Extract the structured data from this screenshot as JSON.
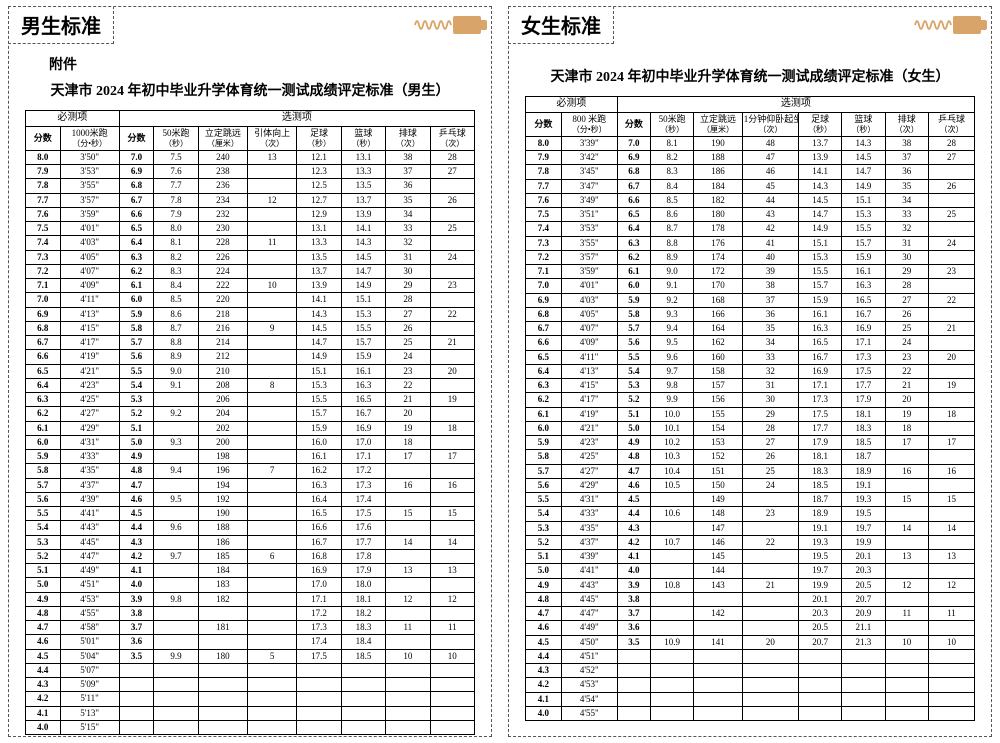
{
  "left": {
    "tab": "男生标准",
    "appendix": "附件",
    "title": "天津市 2024 年初中毕业升学体育统一测试成绩评定标准（男生）",
    "group_required": "必测项",
    "group_optional": "选测项",
    "cols": [
      {
        "h": "分数",
        "u": ""
      },
      {
        "h": "1000米跑",
        "u": "（分•秒）"
      },
      {
        "h": "分数",
        "u": ""
      },
      {
        "h": "50米跑",
        "u": "（秒）"
      },
      {
        "h": "立定跳远",
        "u": "（厘米）"
      },
      {
        "h": "引体向上",
        "u": "（次）"
      },
      {
        "h": "足球",
        "u": "（秒）"
      },
      {
        "h": "篮球",
        "u": "（秒）"
      },
      {
        "h": "排球",
        "u": "（次）"
      },
      {
        "h": "乒乓球",
        "u": "（次）"
      }
    ],
    "rows": [
      [
        "8.0",
        "3'50\"",
        "7.0",
        "7.5",
        "240",
        "13",
        "12.1",
        "13.1",
        "38",
        "28"
      ],
      [
        "7.9",
        "3'53\"",
        "6.9",
        "7.6",
        "238",
        "",
        "12.3",
        "13.3",
        "37",
        "27"
      ],
      [
        "7.8",
        "3'55\"",
        "6.8",
        "7.7",
        "236",
        "",
        "12.5",
        "13.5",
        "36",
        ""
      ],
      [
        "7.7",
        "3'57\"",
        "6.7",
        "7.8",
        "234",
        "12",
        "12.7",
        "13.7",
        "35",
        "26"
      ],
      [
        "7.6",
        "3'59\"",
        "6.6",
        "7.9",
        "232",
        "",
        "12.9",
        "13.9",
        "34",
        ""
      ],
      [
        "7.5",
        "4'01\"",
        "6.5",
        "8.0",
        "230",
        "",
        "13.1",
        "14.1",
        "33",
        "25"
      ],
      [
        "7.4",
        "4'03\"",
        "6.4",
        "8.1",
        "228",
        "11",
        "13.3",
        "14.3",
        "32",
        ""
      ],
      [
        "7.3",
        "4'05\"",
        "6.3",
        "8.2",
        "226",
        "",
        "13.5",
        "14.5",
        "31",
        "24"
      ],
      [
        "7.2",
        "4'07\"",
        "6.2",
        "8.3",
        "224",
        "",
        "13.7",
        "14.7",
        "30",
        ""
      ],
      [
        "7.1",
        "4'09\"",
        "6.1",
        "8.4",
        "222",
        "10",
        "13.9",
        "14.9",
        "29",
        "23"
      ],
      [
        "7.0",
        "4'11\"",
        "6.0",
        "8.5",
        "220",
        "",
        "14.1",
        "15.1",
        "28",
        ""
      ],
      [
        "6.9",
        "4'13\"",
        "5.9",
        "8.6",
        "218",
        "",
        "14.3",
        "15.3",
        "27",
        "22"
      ],
      [
        "6.8",
        "4'15\"",
        "5.8",
        "8.7",
        "216",
        "9",
        "14.5",
        "15.5",
        "26",
        ""
      ],
      [
        "6.7",
        "4'17\"",
        "5.7",
        "8.8",
        "214",
        "",
        "14.7",
        "15.7",
        "25",
        "21"
      ],
      [
        "6.6",
        "4'19\"",
        "5.6",
        "8.9",
        "212",
        "",
        "14.9",
        "15.9",
        "24",
        ""
      ],
      [
        "6.5",
        "4'21\"",
        "5.5",
        "9.0",
        "210",
        "",
        "15.1",
        "16.1",
        "23",
        "20"
      ],
      [
        "6.4",
        "4'23\"",
        "5.4",
        "9.1",
        "208",
        "8",
        "15.3",
        "16.3",
        "22",
        ""
      ],
      [
        "6.3",
        "4'25\"",
        "5.3",
        "",
        "206",
        "",
        "15.5",
        "16.5",
        "21",
        "19"
      ],
      [
        "6.2",
        "4'27\"",
        "5.2",
        "9.2",
        "204",
        "",
        "15.7",
        "16.7",
        "20",
        ""
      ],
      [
        "6.1",
        "4'29\"",
        "5.1",
        "",
        "202",
        "",
        "15.9",
        "16.9",
        "19",
        "18"
      ],
      [
        "6.0",
        "4'31\"",
        "5.0",
        "9.3",
        "200",
        "",
        "16.0",
        "17.0",
        "18",
        ""
      ],
      [
        "5.9",
        "4'33\"",
        "4.9",
        "",
        "198",
        "",
        "16.1",
        "17.1",
        "17",
        "17"
      ],
      [
        "5.8",
        "4'35\"",
        "4.8",
        "9.4",
        "196",
        "7",
        "16.2",
        "17.2",
        "",
        ""
      ],
      [
        "5.7",
        "4'37\"",
        "4.7",
        "",
        "194",
        "",
        "16.3",
        "17.3",
        "16",
        "16"
      ],
      [
        "5.6",
        "4'39\"",
        "4.6",
        "9.5",
        "192",
        "",
        "16.4",
        "17.4",
        "",
        ""
      ],
      [
        "5.5",
        "4'41\"",
        "4.5",
        "",
        "190",
        "",
        "16.5",
        "17.5",
        "15",
        "15"
      ],
      [
        "5.4",
        "4'43\"",
        "4.4",
        "9.6",
        "188",
        "",
        "16.6",
        "17.6",
        "",
        ""
      ],
      [
        "5.3",
        "4'45\"",
        "4.3",
        "",
        "186",
        "",
        "16.7",
        "17.7",
        "14",
        "14"
      ],
      [
        "5.2",
        "4'47\"",
        "4.2",
        "9.7",
        "185",
        "6",
        "16.8",
        "17.8",
        "",
        ""
      ],
      [
        "5.1",
        "4'49\"",
        "4.1",
        "",
        "184",
        "",
        "16.9",
        "17.9",
        "13",
        "13"
      ],
      [
        "5.0",
        "4'51\"",
        "4.0",
        "",
        "183",
        "",
        "17.0",
        "18.0",
        "",
        ""
      ],
      [
        "4.9",
        "4'53\"",
        "3.9",
        "9.8",
        "182",
        "",
        "17.1",
        "18.1",
        "12",
        "12"
      ],
      [
        "4.8",
        "4'55\"",
        "3.8",
        "",
        "",
        "",
        "17.2",
        "18.2",
        "",
        ""
      ],
      [
        "4.7",
        "4'58\"",
        "3.7",
        "",
        "181",
        "",
        "17.3",
        "18.3",
        "11",
        "11"
      ],
      [
        "4.6",
        "5'01\"",
        "3.6",
        "",
        "",
        "",
        "17.4",
        "18.4",
        "",
        ""
      ],
      [
        "4.5",
        "5'04\"",
        "3.5",
        "9.9",
        "180",
        "5",
        "17.5",
        "18.5",
        "10",
        "10"
      ],
      [
        "4.4",
        "5'07\"",
        "",
        "",
        "",
        "",
        "",
        "",
        "",
        ""
      ],
      [
        "4.3",
        "5'09\"",
        "",
        "",
        "",
        "",
        "",
        "",
        "",
        ""
      ],
      [
        "4.2",
        "5'11\"",
        "",
        "",
        "",
        "",
        "",
        "",
        "",
        ""
      ],
      [
        "4.1",
        "5'13\"",
        "",
        "",
        "",
        "",
        "",
        "",
        "",
        ""
      ],
      [
        "4.0",
        "5'15\"",
        "",
        "",
        "",
        "",
        "",
        "",
        "",
        ""
      ]
    ]
  },
  "right": {
    "tab": "女生标准",
    "title": "天津市 2024 年初中毕业升学体育统一测试成绩评定标准（女生）",
    "group_required": "必测项",
    "group_optional": "选测项",
    "cols": [
      {
        "h": "分数",
        "u": ""
      },
      {
        "h": "800 米跑",
        "u": "（分•秒）"
      },
      {
        "h": "分数",
        "u": ""
      },
      {
        "h": "50米跑",
        "u": "（秒）"
      },
      {
        "h": "立定跳远",
        "u": "（厘米）"
      },
      {
        "h": "1分钟仰卧起坐",
        "u": "（次）"
      },
      {
        "h": "足球",
        "u": "（秒）"
      },
      {
        "h": "篮球",
        "u": "（秒）"
      },
      {
        "h": "排球",
        "u": "（次）"
      },
      {
        "h": "乒乓球",
        "u": "（次）"
      }
    ],
    "rows": [
      [
        "8.0",
        "3'39\"",
        "7.0",
        "8.1",
        "190",
        "48",
        "13.7",
        "14.3",
        "38",
        "28"
      ],
      [
        "7.9",
        "3'42\"",
        "6.9",
        "8.2",
        "188",
        "47",
        "13.9",
        "14.5",
        "37",
        "27"
      ],
      [
        "7.8",
        "3'45\"",
        "6.8",
        "8.3",
        "186",
        "46",
        "14.1",
        "14.7",
        "36",
        ""
      ],
      [
        "7.7",
        "3'47\"",
        "6.7",
        "8.4",
        "184",
        "45",
        "14.3",
        "14.9",
        "35",
        "26"
      ],
      [
        "7.6",
        "3'49\"",
        "6.6",
        "8.5",
        "182",
        "44",
        "14.5",
        "15.1",
        "34",
        ""
      ],
      [
        "7.5",
        "3'51\"",
        "6.5",
        "8.6",
        "180",
        "43",
        "14.7",
        "15.3",
        "33",
        "25"
      ],
      [
        "7.4",
        "3'53\"",
        "6.4",
        "8.7",
        "178",
        "42",
        "14.9",
        "15.5",
        "32",
        ""
      ],
      [
        "7.3",
        "3'55\"",
        "6.3",
        "8.8",
        "176",
        "41",
        "15.1",
        "15.7",
        "31",
        "24"
      ],
      [
        "7.2",
        "3'57\"",
        "6.2",
        "8.9",
        "174",
        "40",
        "15.3",
        "15.9",
        "30",
        ""
      ],
      [
        "7.1",
        "3'59\"",
        "6.1",
        "9.0",
        "172",
        "39",
        "15.5",
        "16.1",
        "29",
        "23"
      ],
      [
        "7.0",
        "4'01\"",
        "6.0",
        "9.1",
        "170",
        "38",
        "15.7",
        "16.3",
        "28",
        ""
      ],
      [
        "6.9",
        "4'03\"",
        "5.9",
        "9.2",
        "168",
        "37",
        "15.9",
        "16.5",
        "27",
        "22"
      ],
      [
        "6.8",
        "4'05\"",
        "5.8",
        "9.3",
        "166",
        "36",
        "16.1",
        "16.7",
        "26",
        ""
      ],
      [
        "6.7",
        "4'07\"",
        "5.7",
        "9.4",
        "164",
        "35",
        "16.3",
        "16.9",
        "25",
        "21"
      ],
      [
        "6.6",
        "4'09\"",
        "5.6",
        "9.5",
        "162",
        "34",
        "16.5",
        "17.1",
        "24",
        ""
      ],
      [
        "6.5",
        "4'11\"",
        "5.5",
        "9.6",
        "160",
        "33",
        "16.7",
        "17.3",
        "23",
        "20"
      ],
      [
        "6.4",
        "4'13\"",
        "5.4",
        "9.7",
        "158",
        "32",
        "16.9",
        "17.5",
        "22",
        ""
      ],
      [
        "6.3",
        "4'15\"",
        "5.3",
        "9.8",
        "157",
        "31",
        "17.1",
        "17.7",
        "21",
        "19"
      ],
      [
        "6.2",
        "4'17\"",
        "5.2",
        "9.9",
        "156",
        "30",
        "17.3",
        "17.9",
        "20",
        ""
      ],
      [
        "6.1",
        "4'19\"",
        "5.1",
        "10.0",
        "155",
        "29",
        "17.5",
        "18.1",
        "19",
        "18"
      ],
      [
        "6.0",
        "4'21\"",
        "5.0",
        "10.1",
        "154",
        "28",
        "17.7",
        "18.3",
        "18",
        ""
      ],
      [
        "5.9",
        "4'23\"",
        "4.9",
        "10.2",
        "153",
        "27",
        "17.9",
        "18.5",
        "17",
        "17"
      ],
      [
        "5.8",
        "4'25\"",
        "4.8",
        "10.3",
        "152",
        "26",
        "18.1",
        "18.7",
        "",
        ""
      ],
      [
        "5.7",
        "4'27\"",
        "4.7",
        "10.4",
        "151",
        "25",
        "18.3",
        "18.9",
        "16",
        "16"
      ],
      [
        "5.6",
        "4'29\"",
        "4.6",
        "10.5",
        "150",
        "24",
        "18.5",
        "19.1",
        "",
        ""
      ],
      [
        "5.5",
        "4'31\"",
        "4.5",
        "",
        "149",
        "",
        "18.7",
        "19.3",
        "15",
        "15"
      ],
      [
        "5.4",
        "4'33\"",
        "4.4",
        "10.6",
        "148",
        "23",
        "18.9",
        "19.5",
        "",
        ""
      ],
      [
        "5.3",
        "4'35\"",
        "4.3",
        "",
        "147",
        "",
        "19.1",
        "19.7",
        "14",
        "14"
      ],
      [
        "5.2",
        "4'37\"",
        "4.2",
        "10.7",
        "146",
        "22",
        "19.3",
        "19.9",
        "",
        ""
      ],
      [
        "5.1",
        "4'39\"",
        "4.1",
        "",
        "145",
        "",
        "19.5",
        "20.1",
        "13",
        "13"
      ],
      [
        "5.0",
        "4'41\"",
        "4.0",
        "",
        "144",
        "",
        "19.7",
        "20.3",
        "",
        ""
      ],
      [
        "4.9",
        "4'43\"",
        "3.9",
        "10.8",
        "143",
        "21",
        "19.9",
        "20.5",
        "12",
        "12"
      ],
      [
        "4.8",
        "4'45\"",
        "3.8",
        "",
        "",
        "",
        "20.1",
        "20.7",
        "",
        ""
      ],
      [
        "4.7",
        "4'47\"",
        "3.7",
        "",
        "142",
        "",
        "20.3",
        "20.9",
        "11",
        "11"
      ],
      [
        "4.6",
        "4'49\"",
        "3.6",
        "",
        "",
        "",
        "20.5",
        "21.1",
        "",
        ""
      ],
      [
        "4.5",
        "4'50\"",
        "3.5",
        "10.9",
        "141",
        "20",
        "20.7",
        "21.3",
        "10",
        "10"
      ],
      [
        "4.4",
        "4'51\"",
        "",
        "",
        "",
        "",
        "",
        "",
        "",
        ""
      ],
      [
        "4.3",
        "4'52\"",
        "",
        "",
        "",
        "",
        "",
        "",
        "",
        ""
      ],
      [
        "4.2",
        "4'53\"",
        "",
        "",
        "",
        "",
        "",
        "",
        "",
        ""
      ],
      [
        "4.1",
        "4'54\"",
        "",
        "",
        "",
        "",
        "",
        "",
        "",
        ""
      ],
      [
        "4.0",
        "4'55\"",
        "",
        "",
        "",
        "",
        "",
        "",
        "",
        ""
      ]
    ]
  },
  "colors": {
    "accent": "#d9a46a"
  }
}
